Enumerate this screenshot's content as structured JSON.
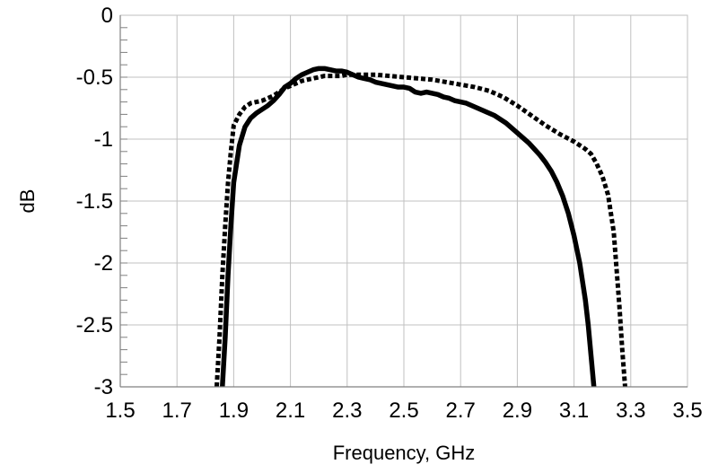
{
  "chart_data": {
    "type": "line",
    "title": "",
    "xlabel": "Frequency, GHz",
    "ylabel": "dB",
    "xlim": [
      1.5,
      3.5
    ],
    "ylim": [
      -3,
      0
    ],
    "x_ticks": [
      "1.5",
      "1.7",
      "1.9",
      "2.1",
      "2.3",
      "2.5",
      "2.7",
      "2.9",
      "3.1",
      "3.3",
      "3.5"
    ],
    "y_ticks": [
      "0",
      "-0.5",
      "-1",
      "-1.5",
      "-2",
      "-2.5",
      "-3"
    ],
    "grid": true,
    "minor_y_step": 0.1,
    "legend": "none",
    "series": [
      {
        "style": "solid",
        "color": "#000000",
        "x": [
          1.86,
          1.87,
          1.88,
          1.89,
          1.9,
          1.92,
          1.94,
          1.96,
          1.98,
          2.0,
          2.02,
          2.04,
          2.06,
          2.08,
          2.1,
          2.12,
          2.14,
          2.16,
          2.18,
          2.2,
          2.22,
          2.24,
          2.26,
          2.28,
          2.3,
          2.32,
          2.34,
          2.36,
          2.38,
          2.4,
          2.42,
          2.44,
          2.46,
          2.48,
          2.5,
          2.52,
          2.54,
          2.56,
          2.58,
          2.6,
          2.62,
          2.64,
          2.66,
          2.68,
          2.7,
          2.72,
          2.74,
          2.76,
          2.78,
          2.8,
          2.82,
          2.84,
          2.86,
          2.88,
          2.9,
          2.92,
          2.94,
          2.96,
          2.98,
          3.0,
          3.02,
          3.04,
          3.06,
          3.08,
          3.1,
          3.12,
          3.14,
          3.15,
          3.16,
          3.17
        ],
        "y": [
          -3.0,
          -2.6,
          -2.1,
          -1.7,
          -1.35,
          -1.05,
          -0.9,
          -0.83,
          -0.79,
          -0.76,
          -0.73,
          -0.69,
          -0.64,
          -0.58,
          -0.55,
          -0.51,
          -0.48,
          -0.46,
          -0.44,
          -0.43,
          -0.43,
          -0.44,
          -0.45,
          -0.45,
          -0.46,
          -0.48,
          -0.5,
          -0.51,
          -0.52,
          -0.54,
          -0.55,
          -0.56,
          -0.57,
          -0.58,
          -0.58,
          -0.59,
          -0.62,
          -0.63,
          -0.62,
          -0.63,
          -0.64,
          -0.66,
          -0.67,
          -0.69,
          -0.7,
          -0.71,
          -0.73,
          -0.75,
          -0.77,
          -0.79,
          -0.81,
          -0.84,
          -0.87,
          -0.91,
          -0.95,
          -0.99,
          -1.03,
          -1.08,
          -1.13,
          -1.19,
          -1.26,
          -1.35,
          -1.46,
          -1.6,
          -1.78,
          -2.0,
          -2.3,
          -2.5,
          -2.75,
          -3.0
        ]
      },
      {
        "style": "dotted",
        "color": "#000000",
        "x": [
          1.84,
          1.85,
          1.86,
          1.87,
          1.88,
          1.89,
          1.9,
          1.92,
          1.94,
          1.96,
          1.98,
          2.0,
          2.02,
          2.04,
          2.06,
          2.08,
          2.1,
          2.12,
          2.14,
          2.16,
          2.18,
          2.2,
          2.22,
          2.24,
          2.26,
          2.28,
          2.3,
          2.35,
          2.4,
          2.45,
          2.5,
          2.55,
          2.6,
          2.65,
          2.7,
          2.75,
          2.8,
          2.85,
          2.9,
          2.95,
          3.0,
          3.05,
          3.1,
          3.12,
          3.14,
          3.16,
          3.18,
          3.2,
          3.22,
          3.24,
          3.25,
          3.26,
          3.27,
          3.28
        ],
        "y": [
          -3.0,
          -2.6,
          -2.1,
          -1.7,
          -1.35,
          -1.1,
          -0.89,
          -0.8,
          -0.74,
          -0.71,
          -0.7,
          -0.69,
          -0.67,
          -0.65,
          -0.62,
          -0.59,
          -0.57,
          -0.55,
          -0.53,
          -0.52,
          -0.51,
          -0.5,
          -0.49,
          -0.49,
          -0.49,
          -0.49,
          -0.48,
          -0.48,
          -0.48,
          -0.49,
          -0.5,
          -0.51,
          -0.52,
          -0.54,
          -0.56,
          -0.58,
          -0.61,
          -0.66,
          -0.73,
          -0.81,
          -0.89,
          -0.96,
          -1.02,
          -1.05,
          -1.08,
          -1.12,
          -1.2,
          -1.3,
          -1.45,
          -1.75,
          -2.05,
          -2.35,
          -2.7,
          -3.0
        ]
      }
    ]
  }
}
